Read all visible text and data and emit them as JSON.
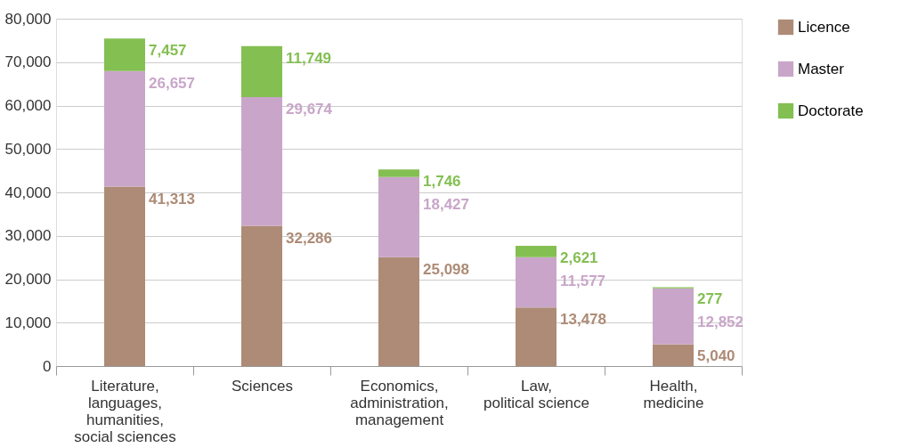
{
  "chart_data": {
    "type": "bar",
    "stacked": true,
    "categories": [
      "Literature, languages, humanities, social sciences",
      "Sciences",
      "Economics, administration, management",
      "Law, political science",
      "Health, medicine"
    ],
    "series": [
      {
        "name": "Licence",
        "color": "#ad8b76",
        "values": [
          41313,
          32286,
          25098,
          13478,
          5040
        ]
      },
      {
        "name": "Master",
        "color": "#c9a6c9",
        "values": [
          26657,
          29674,
          18427,
          11577,
          12852
        ]
      },
      {
        "name": "Doctorate",
        "color": "#84bf52",
        "values": [
          7457,
          11749,
          1746,
          2621,
          277
        ]
      }
    ],
    "ylim": [
      0,
      80000
    ],
    "yticks": [
      {
        "value": 0,
        "label": "0"
      },
      {
        "value": 10000,
        "label": "10,000"
      },
      {
        "value": 20000,
        "label": "20,000"
      },
      {
        "value": 30000,
        "label": "30,000"
      },
      {
        "value": 40000,
        "label": "40,000"
      },
      {
        "value": 50000,
        "label": "50,000"
      },
      {
        "value": 60000,
        "label": "60,000"
      },
      {
        "value": 70000,
        "label": "70,000"
      },
      {
        "value": 80000,
        "label": "80,000"
      }
    ],
    "grid": "y",
    "legend": "top right",
    "value_labels": [
      [
        "41,313",
        "32,286",
        "25,098",
        "13,478",
        "5,040"
      ],
      [
        "26,657",
        "29,674",
        "18,427",
        "11,577",
        "12,852"
      ],
      [
        "7,457",
        "11,749",
        "1,746",
        "2,621",
        "277"
      ]
    ]
  }
}
